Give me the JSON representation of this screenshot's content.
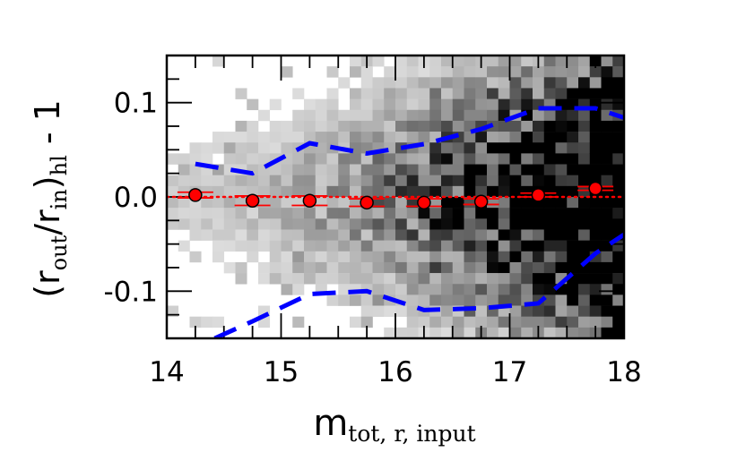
{
  "chart_data": {
    "type": "scatter",
    "xlabel": {
      "main": "m",
      "sub": "tot, r, input"
    },
    "ylabel": {
      "open": "(r",
      "sub1": "out",
      "slash": "/r",
      "sub2": "in",
      "close": ")",
      "sub3": "hl",
      "tail": " - 1"
    },
    "xlim": [
      14,
      18
    ],
    "ylim": [
      -0.15,
      0.15
    ],
    "x_ticks": [
      14,
      15,
      16,
      17,
      18
    ],
    "x_tick_labels": [
      "14",
      "15",
      "16",
      "17",
      "18"
    ],
    "y_ticks": [
      -0.1,
      0.0,
      0.1
    ],
    "y_tick_labels": [
      "-0.1",
      "0.0",
      "0.1"
    ],
    "grid": false,
    "density_background": {
      "description_colormap": "grayscale 2D histogram, denser toward faint magnitudes",
      "x_bins": 40,
      "y_bins": 26
    },
    "series": [
      {
        "style": "binned medians with error bars",
        "color": "#ff0000",
        "x": [
          14.25,
          14.75,
          15.25,
          15.75,
          16.25,
          16.75,
          17.25,
          17.75
        ],
        "y": [
          0.002,
          -0.004,
          -0.004,
          -0.006,
          -0.006,
          -0.005,
          0.002,
          0.009
        ],
        "yerr": [
          0.003,
          0.005,
          0.005,
          0.004,
          0.004,
          0.003,
          0.002,
          0.002
        ]
      },
      {
        "style": "dotted reference line",
        "color": "#ff0000",
        "x": [
          14,
          18
        ],
        "y": [
          0.0,
          0.0
        ]
      },
      {
        "style": "dashed upper envelope",
        "color": "#0000ff",
        "x": [
          14.25,
          14.75,
          15.25,
          15.75,
          16.25,
          16.75,
          17.25,
          17.75,
          18.0
        ],
        "y": [
          0.035,
          0.025,
          0.057,
          0.046,
          0.056,
          0.072,
          0.094,
          0.094,
          0.084
        ]
      },
      {
        "style": "dashed lower envelope",
        "color": "#0000ff",
        "x": [
          14.42,
          14.75,
          15.25,
          15.75,
          16.25,
          16.75,
          17.25,
          17.75,
          18.0
        ],
        "y": [
          -0.15,
          -0.132,
          -0.103,
          -0.1,
          -0.12,
          -0.118,
          -0.113,
          -0.06,
          -0.04
        ]
      }
    ]
  }
}
